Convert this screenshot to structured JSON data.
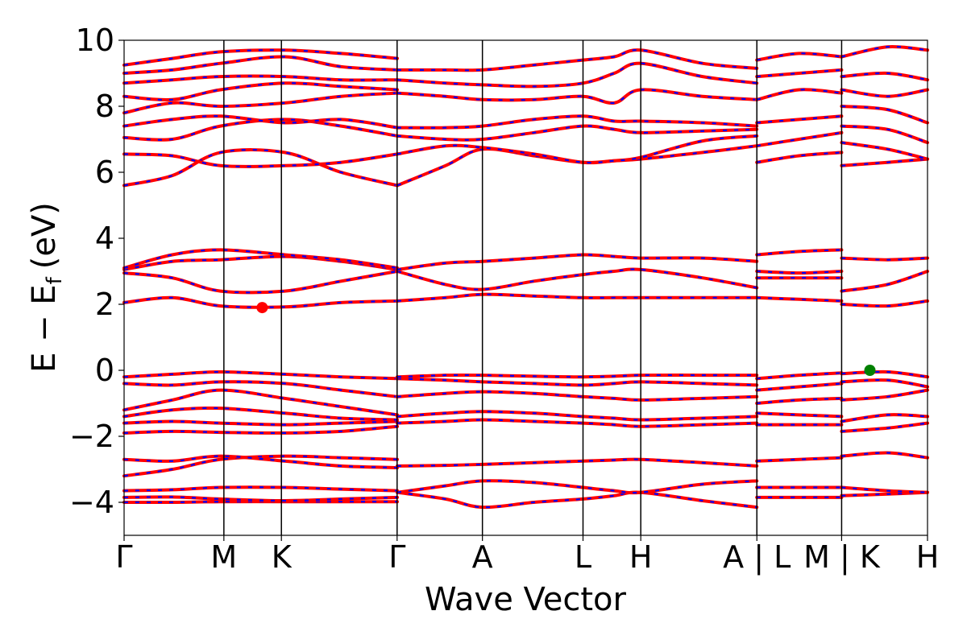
{
  "chart_data": {
    "type": "line",
    "xlabel": "Wave Vector",
    "ylabel": "E − E",
    "ylabel_sub": "f",
    "ylabel_unit": "(eV)",
    "ylim": [
      -5,
      10
    ],
    "yticks": [
      -4,
      -2,
      0,
      2,
      4,
      6,
      8,
      10
    ],
    "ytick_labels": [
      "−4",
      "−2",
      "0",
      "2",
      "4",
      "6",
      "8",
      "10"
    ],
    "xlim": [
      0,
      1
    ],
    "kpoint_ticks": [
      {
        "label": "Γ",
        "x": 0.0
      },
      {
        "label": "M",
        "x": 0.1242
      },
      {
        "label": "K",
        "x": 0.1958
      },
      {
        "label": "Γ",
        "x": 0.3398
      },
      {
        "label": "A",
        "x": 0.446
      },
      {
        "label": "L",
        "x": 0.5712
      },
      {
        "label": "H",
        "x": 0.6431
      },
      {
        "label": "A | L",
        "x": 0.7876
      },
      {
        "label": "M | K",
        "x": 0.8931
      },
      {
        "label": "H",
        "x": 1.0
      }
    ],
    "band_colors": {
      "spin_up": "#ff0000",
      "spin_down": "#0000ff"
    },
    "markers": [
      {
        "name": "CBM",
        "x": 0.1719,
        "y": 1.9,
        "color": "#ff0000"
      },
      {
        "name": "VBM",
        "x": 0.9283,
        "y": 0.0,
        "color": "#008000"
      }
    ],
    "series": [
      {
        "x": [
          0,
          0.06,
          0.12,
          0.2,
          0.27,
          0.34
        ],
        "y": [
          -4.0,
          -4.0,
          -3.98,
          -3.98,
          -3.98,
          -3.98
        ]
      },
      {
        "x": [
          0,
          0.06,
          0.12,
          0.2,
          0.27,
          0.34
        ],
        "y": [
          -3.85,
          -3.84,
          -3.9,
          -3.95,
          -3.9,
          -3.85
        ]
      },
      {
        "x": [
          0,
          0.06,
          0.12,
          0.2,
          0.27,
          0.34
        ],
        "y": [
          -3.65,
          -3.62,
          -3.55,
          -3.55,
          -3.6,
          -3.65
        ]
      },
      {
        "x": [
          0,
          0.06,
          0.12,
          0.2,
          0.27,
          0.34
        ],
        "y": [
          -3.2,
          -3.0,
          -2.7,
          -2.6,
          -2.65,
          -2.7
        ]
      },
      {
        "x": [
          0,
          0.06,
          0.12,
          0.2,
          0.27,
          0.34
        ],
        "y": [
          -2.7,
          -2.75,
          -2.6,
          -2.75,
          -2.9,
          -2.95
        ]
      },
      {
        "x": [
          0,
          0.06,
          0.12,
          0.2,
          0.27,
          0.34
        ],
        "y": [
          -1.9,
          -1.85,
          -1.88,
          -1.9,
          -1.85,
          -1.7
        ]
      },
      {
        "x": [
          0,
          0.06,
          0.12,
          0.2,
          0.27,
          0.34
        ],
        "y": [
          -1.6,
          -1.55,
          -1.6,
          -1.65,
          -1.6,
          -1.55
        ]
      },
      {
        "x": [
          0,
          0.06,
          0.12,
          0.2,
          0.27,
          0.34
        ],
        "y": [
          -1.4,
          -1.2,
          -1.15,
          -1.3,
          -1.45,
          -1.5
        ]
      },
      {
        "x": [
          0,
          0.06,
          0.12,
          0.2,
          0.27,
          0.34
        ],
        "y": [
          -1.2,
          -0.9,
          -0.6,
          -0.85,
          -1.1,
          -1.35
        ]
      },
      {
        "x": [
          0,
          0.06,
          0.12,
          0.2,
          0.27,
          0.34
        ],
        "y": [
          -0.4,
          -0.45,
          -0.35,
          -0.4,
          -0.6,
          -0.8
        ]
      },
      {
        "x": [
          0,
          0.06,
          0.12,
          0.2,
          0.27,
          0.34
        ],
        "y": [
          -0.2,
          -0.12,
          -0.05,
          -0.12,
          -0.2,
          -0.25
        ]
      },
      {
        "x": [
          0,
          0.06,
          0.12,
          0.2,
          0.27,
          0.34
        ],
        "y": [
          2.05,
          2.2,
          1.95,
          1.92,
          2.05,
          2.1
        ]
      },
      {
        "x": [
          0,
          0.06,
          0.12,
          0.2,
          0.27,
          0.34
        ],
        "y": [
          2.95,
          2.8,
          2.4,
          2.4,
          2.7,
          3.0
        ]
      },
      {
        "x": [
          0,
          0.06,
          0.12,
          0.2,
          0.27,
          0.34
        ],
        "y": [
          3.05,
          3.3,
          3.35,
          3.45,
          3.3,
          3.05
        ]
      },
      {
        "x": [
          0,
          0.06,
          0.12,
          0.2,
          0.27,
          0.34
        ],
        "y": [
          3.1,
          3.5,
          3.65,
          3.5,
          3.35,
          3.1
        ]
      },
      {
        "x": [
          0,
          0.06,
          0.12,
          0.2,
          0.27,
          0.34
        ],
        "y": [
          5.6,
          5.9,
          6.6,
          6.6,
          6.0,
          5.6
        ]
      },
      {
        "x": [
          0,
          0.06,
          0.12,
          0.2,
          0.27,
          0.34
        ],
        "y": [
          6.55,
          6.5,
          6.2,
          6.2,
          6.3,
          6.55
        ]
      },
      {
        "x": [
          0,
          0.06,
          0.12,
          0.2,
          0.27,
          0.34
        ],
        "y": [
          7.05,
          7.0,
          7.4,
          7.6,
          7.4,
          7.1
        ]
      },
      {
        "x": [
          0,
          0.06,
          0.12,
          0.2,
          0.27,
          0.34
        ],
        "y": [
          7.4,
          7.6,
          7.7,
          7.5,
          7.6,
          7.35
        ]
      },
      {
        "x": [
          0,
          0.06,
          0.12,
          0.2,
          0.27,
          0.34
        ],
        "y": [
          7.8,
          8.1,
          8.0,
          8.1,
          8.3,
          8.4
        ]
      },
      {
        "x": [
          0,
          0.06,
          0.12,
          0.2,
          0.27,
          0.34
        ],
        "y": [
          8.3,
          8.2,
          8.5,
          8.7,
          8.6,
          8.5
        ]
      },
      {
        "x": [
          0,
          0.06,
          0.12,
          0.2,
          0.27,
          0.34
        ],
        "y": [
          8.7,
          8.8,
          8.9,
          8.9,
          8.8,
          8.8
        ]
      },
      {
        "x": [
          0,
          0.06,
          0.12,
          0.2,
          0.27,
          0.34
        ],
        "y": [
          9.0,
          9.1,
          9.3,
          9.5,
          9.2,
          9.1
        ]
      },
      {
        "x": [
          0,
          0.06,
          0.12,
          0.2,
          0.27,
          0.34
        ],
        "y": [
          9.25,
          9.45,
          9.65,
          9.7,
          9.6,
          9.45
        ]
      },
      {
        "x": [
          0.34,
          0.4,
          0.446,
          0.51,
          0.571,
          0.61,
          0.643,
          0.72,
          0.7876
        ],
        "y": [
          -3.7,
          -3.9,
          -4.15,
          -4.0,
          -3.9,
          -3.8,
          -3.7,
          -3.95,
          -4.15
        ]
      },
      {
        "x": [
          0.34,
          0.4,
          0.446,
          0.51,
          0.571,
          0.61,
          0.643,
          0.72,
          0.7876
        ],
        "y": [
          -3.7,
          -3.5,
          -3.35,
          -3.4,
          -3.55,
          -3.65,
          -3.7,
          -3.45,
          -3.35
        ]
      },
      {
        "x": [
          0.34,
          0.4,
          0.446,
          0.51,
          0.571,
          0.61,
          0.643,
          0.72,
          0.7876
        ],
        "y": [
          -2.9,
          -2.88,
          -2.85,
          -2.8,
          -2.75,
          -2.72,
          -2.7,
          -2.8,
          -2.9
        ]
      },
      {
        "x": [
          0.34,
          0.4,
          0.446,
          0.51,
          0.571,
          0.61,
          0.643,
          0.72,
          0.7876
        ],
        "y": [
          -1.6,
          -1.55,
          -1.5,
          -1.55,
          -1.6,
          -1.65,
          -1.7,
          -1.65,
          -1.6
        ]
      },
      {
        "x": [
          0.34,
          0.4,
          0.446,
          0.51,
          0.571,
          0.61,
          0.643,
          0.72,
          0.7876
        ],
        "y": [
          -1.4,
          -1.3,
          -1.25,
          -1.3,
          -1.4,
          -1.45,
          -1.5,
          -1.45,
          -1.4
        ]
      },
      {
        "x": [
          0.34,
          0.4,
          0.446,
          0.51,
          0.571,
          0.61,
          0.643,
          0.72,
          0.7876
        ],
        "y": [
          -0.8,
          -0.7,
          -0.65,
          -0.7,
          -0.8,
          -0.85,
          -0.9,
          -0.85,
          -0.8
        ]
      },
      {
        "x": [
          0.34,
          0.4,
          0.446,
          0.51,
          0.571,
          0.61,
          0.643,
          0.72,
          0.7876
        ],
        "y": [
          -0.25,
          -0.3,
          -0.35,
          -0.4,
          -0.45,
          -0.4,
          -0.35,
          -0.4,
          -0.45
        ]
      },
      {
        "x": [
          0.34,
          0.4,
          0.446,
          0.51,
          0.571,
          0.61,
          0.643,
          0.72,
          0.7876
        ],
        "y": [
          -0.2,
          -0.15,
          -0.15,
          -0.18,
          -0.2,
          -0.18,
          -0.15,
          -0.15,
          -0.15
        ]
      },
      {
        "x": [
          0.34,
          0.4,
          0.446,
          0.51,
          0.571,
          0.61,
          0.643,
          0.72,
          0.7876
        ],
        "y": [
          2.1,
          2.2,
          2.3,
          2.25,
          2.2,
          2.2,
          2.2,
          2.2,
          2.2
        ]
      },
      {
        "x": [
          0.34,
          0.4,
          0.446,
          0.51,
          0.571,
          0.61,
          0.643,
          0.72,
          0.7876
        ],
        "y": [
          3.0,
          2.6,
          2.45,
          2.7,
          2.9,
          3.0,
          3.05,
          2.8,
          2.5
        ]
      },
      {
        "x": [
          0.34,
          0.4,
          0.446,
          0.51,
          0.571,
          0.61,
          0.643,
          0.72,
          0.7876
        ],
        "y": [
          3.05,
          3.25,
          3.3,
          3.4,
          3.5,
          3.45,
          3.4,
          3.4,
          3.3
        ]
      },
      {
        "x": [
          0.34,
          0.4,
          0.446,
          0.51,
          0.571,
          0.61,
          0.643,
          0.72,
          0.7876
        ],
        "y": [
          5.6,
          6.2,
          6.7,
          6.5,
          6.3,
          6.35,
          6.4,
          6.6,
          6.8
        ]
      },
      {
        "x": [
          0.34,
          0.4,
          0.446,
          0.51,
          0.571,
          0.61,
          0.643,
          0.72,
          0.7876
        ],
        "y": [
          6.55,
          6.8,
          6.75,
          6.55,
          6.3,
          6.35,
          6.45,
          6.95,
          7.1
        ]
      },
      {
        "x": [
          0.34,
          0.4,
          0.446,
          0.51,
          0.571,
          0.61,
          0.643,
          0.72,
          0.7876
        ],
        "y": [
          7.1,
          7.0,
          7.0,
          7.2,
          7.4,
          7.3,
          7.2,
          7.25,
          7.3
        ]
      },
      {
        "x": [
          0.34,
          0.4,
          0.446,
          0.51,
          0.571,
          0.61,
          0.643,
          0.72,
          0.7876
        ],
        "y": [
          7.35,
          7.35,
          7.4,
          7.6,
          7.7,
          7.55,
          7.55,
          7.5,
          7.4
        ]
      },
      {
        "x": [
          0.34,
          0.4,
          0.446,
          0.51,
          0.571,
          0.61,
          0.643,
          0.72,
          0.7876
        ],
        "y": [
          8.4,
          8.3,
          8.2,
          8.2,
          8.3,
          8.1,
          8.5,
          8.3,
          8.2
        ]
      },
      {
        "x": [
          0.34,
          0.4,
          0.446,
          0.51,
          0.571,
          0.61,
          0.643,
          0.72,
          0.7876
        ],
        "y": [
          8.8,
          8.7,
          8.65,
          8.6,
          8.7,
          9.0,
          9.3,
          8.9,
          8.7
        ]
      },
      {
        "x": [
          0.34,
          0.4,
          0.446,
          0.51,
          0.571,
          0.61,
          0.643,
          0.72,
          0.7876
        ],
        "y": [
          9.1,
          9.1,
          9.1,
          9.25,
          9.4,
          9.5,
          9.7,
          9.3,
          9.15
        ]
      },
      {
        "x": [
          0.7876,
          0.84,
          0.8931
        ],
        "y": [
          -3.85,
          -3.85,
          -3.85
        ]
      },
      {
        "x": [
          0.7876,
          0.84,
          0.8931
        ],
        "y": [
          -3.55,
          -3.55,
          -3.55
        ]
      },
      {
        "x": [
          0.7876,
          0.84,
          0.8931
        ],
        "y": [
          -2.75,
          -2.7,
          -2.65
        ]
      },
      {
        "x": [
          0.7876,
          0.84,
          0.8931
        ],
        "y": [
          -1.65,
          -1.65,
          -1.65
        ]
      },
      {
        "x": [
          0.7876,
          0.84,
          0.8931
        ],
        "y": [
          -1.3,
          -1.35,
          -1.4
        ]
      },
      {
        "x": [
          0.7876,
          0.84,
          0.8931
        ],
        "y": [
          -1.0,
          -0.9,
          -0.85
        ]
      },
      {
        "x": [
          0.7876,
          0.84,
          0.8931
        ],
        "y": [
          -0.6,
          -0.5,
          -0.4
        ]
      },
      {
        "x": [
          0.7876,
          0.84,
          0.8931
        ],
        "y": [
          -0.25,
          -0.15,
          -0.08
        ]
      },
      {
        "x": [
          0.7876,
          0.84,
          0.8931
        ],
        "y": [
          2.2,
          2.15,
          2.1
        ]
      },
      {
        "x": [
          0.7876,
          0.84,
          0.8931
        ],
        "y": [
          2.8,
          2.8,
          2.8
        ]
      },
      {
        "x": [
          0.7876,
          0.84,
          0.8931
        ],
        "y": [
          3.0,
          2.95,
          3.0
        ]
      },
      {
        "x": [
          0.7876,
          0.84,
          0.8931
        ],
        "y": [
          3.5,
          3.6,
          3.65
        ]
      },
      {
        "x": [
          0.7876,
          0.84,
          0.8931
        ],
        "y": [
          6.3,
          6.5,
          6.6
        ]
      },
      {
        "x": [
          0.7876,
          0.84,
          0.8931
        ],
        "y": [
          6.8,
          7.0,
          7.2
        ]
      },
      {
        "x": [
          0.7876,
          0.84,
          0.8931
        ],
        "y": [
          7.5,
          7.6,
          7.7
        ]
      },
      {
        "x": [
          0.7876,
          0.84,
          0.8931
        ],
        "y": [
          8.2,
          8.5,
          8.4
        ]
      },
      {
        "x": [
          0.7876,
          0.84,
          0.8931
        ],
        "y": [
          8.9,
          9.0,
          9.1
        ]
      },
      {
        "x": [
          0.7876,
          0.84,
          0.8931
        ],
        "y": [
          9.4,
          9.6,
          9.5
        ]
      },
      {
        "x": [
          0.8931,
          0.95,
          1.0
        ],
        "y": [
          -3.8,
          -3.75,
          -3.7
        ]
      },
      {
        "x": [
          0.8931,
          0.95,
          1.0
        ],
        "y": [
          -3.55,
          -3.65,
          -3.7
        ]
      },
      {
        "x": [
          0.8931,
          0.95,
          1.0
        ],
        "y": [
          -2.6,
          -2.5,
          -2.65
        ]
      },
      {
        "x": [
          0.8931,
          0.95,
          1.0
        ],
        "y": [
          -1.85,
          -1.75,
          -1.6
        ]
      },
      {
        "x": [
          0.8931,
          0.95,
          1.0
        ],
        "y": [
          -1.55,
          -1.35,
          -1.4
        ]
      },
      {
        "x": [
          0.8931,
          0.95,
          1.0
        ],
        "y": [
          -0.9,
          -0.8,
          -0.6
        ]
      },
      {
        "x": [
          0.8931,
          0.95,
          1.0
        ],
        "y": [
          -0.35,
          -0.3,
          -0.5
        ]
      },
      {
        "x": [
          0.8931,
          0.95,
          1.0
        ],
        "y": [
          -0.1,
          -0.05,
          -0.2
        ]
      },
      {
        "x": [
          0.8931,
          0.95,
          1.0
        ],
        "y": [
          2.0,
          1.95,
          2.1
        ]
      },
      {
        "x": [
          0.8931,
          0.95,
          1.0
        ],
        "y": [
          2.4,
          2.6,
          3.0
        ]
      },
      {
        "x": [
          0.8931,
          0.95,
          1.0
        ],
        "y": [
          3.4,
          3.35,
          3.4
        ]
      },
      {
        "x": [
          0.8931,
          0.95,
          1.0
        ],
        "y": [
          6.2,
          6.3,
          6.4
        ]
      },
      {
        "x": [
          0.8931,
          0.95,
          1.0
        ],
        "y": [
          6.9,
          6.7,
          6.4
        ]
      },
      {
        "x": [
          0.8931,
          0.95,
          1.0
        ],
        "y": [
          7.4,
          7.3,
          6.9
        ]
      },
      {
        "x": [
          0.8931,
          0.95,
          1.0
        ],
        "y": [
          8.0,
          7.9,
          7.5
        ]
      },
      {
        "x": [
          0.8931,
          0.95,
          1.0
        ],
        "y": [
          8.5,
          8.3,
          8.5
        ]
      },
      {
        "x": [
          0.8931,
          0.95,
          1.0
        ],
        "y": [
          8.9,
          9.0,
          8.8
        ]
      },
      {
        "x": [
          0.8931,
          0.95,
          1.0
        ],
        "y": [
          9.5,
          9.8,
          9.7
        ]
      }
    ]
  }
}
